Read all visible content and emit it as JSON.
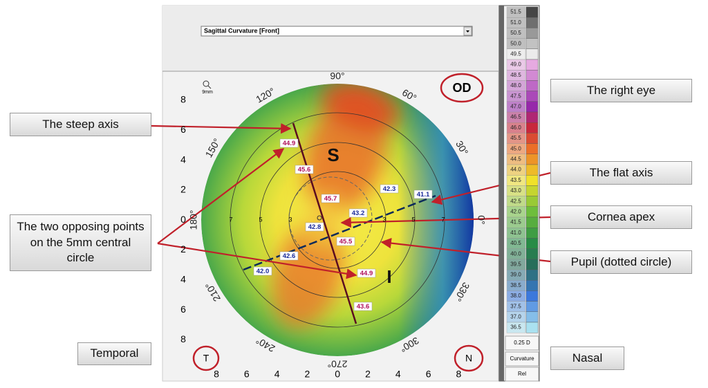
{
  "dropdown": "Sagittal Curvature [Front]",
  "zoom_label": "9mm",
  "eye": "OD",
  "temporal_marker": "T",
  "nasal_marker": "N",
  "callouts": [
    "The steep axis",
    "The two opposing points on the 5mm central circle",
    "Temporal",
    "The right eye",
    "The flat axis",
    "Cornea apex",
    "Pupil (dotted circle)",
    "Nasal"
  ],
  "zones": [
    "S",
    "I"
  ],
  "angle_labels": [
    "90°",
    "60°",
    "30°",
    "0°",
    "330°",
    "300°",
    "270°",
    "240°",
    "210°",
    "180°",
    "150°",
    "120°"
  ],
  "y_axis": [
    "8",
    "6",
    "4",
    "2",
    "0",
    "2",
    "4",
    "6",
    "8"
  ],
  "x_axis": [
    "8",
    "6",
    "4",
    "2",
    "0",
    "2",
    "4",
    "6",
    "8"
  ],
  "ring_labels": [
    "7",
    "5",
    "3",
    "3",
    "5",
    "7"
  ],
  "steep_values": [
    "44.9",
    "45.6",
    "45.7",
    "45.5",
    "44.9",
    "43.6"
  ],
  "flat_values": [
    "41.1",
    "42.3",
    "43.2",
    "42.8",
    "42.6",
    "42.0"
  ],
  "scale": [
    "51.5",
    "51.0",
    "50.5",
    "50.0",
    "49.5",
    "49.0",
    "48.5",
    "48.0",
    "47.5",
    "47.0",
    "46.5",
    "46.0",
    "45.5",
    "45.0",
    "44.5",
    "44.0",
    "43.5",
    "43.0",
    "42.5",
    "42.0",
    "41.5",
    "41.0",
    "40.5",
    "40.0",
    "39.5",
    "39.0",
    "38.5",
    "38.0",
    "37.5",
    "37.0",
    "36.5"
  ],
  "scale_step": "0.25 D",
  "scale_mode": "Curvature",
  "scale_ref": "Rel"
}
